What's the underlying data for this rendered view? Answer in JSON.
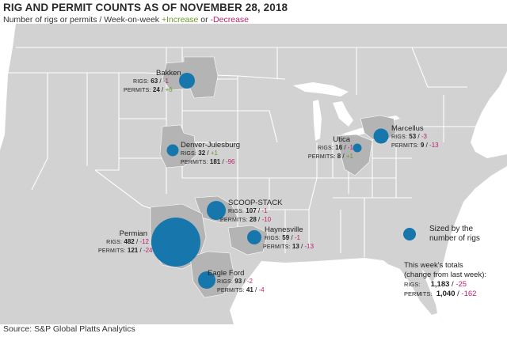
{
  "title": "RIG AND PERMIT COUNTS AS OF NOVEMBER 28, 2018",
  "subtitle": {
    "main": "Number of rigs or permits / Week-on-week",
    "increase": "+Increase",
    "or": "or",
    "decrease": "-Decrease"
  },
  "colors": {
    "bubble": "#1777ad",
    "increase": "#6b9a2c",
    "decrease": "#b8236b",
    "land": "#d2d2d2",
    "basin": "#b4b4b4",
    "water": "#ffffff"
  },
  "basins": [
    {
      "id": "bakken",
      "name": "Bakken",
      "rigs": "63",
      "rigs_change": "-1",
      "permits": "24",
      "permits_change": "+6"
    },
    {
      "id": "dj",
      "name": "Denver-Julesburg",
      "rigs": "32",
      "rigs_change": "+1",
      "permits": "181",
      "permits_change": "-96"
    },
    {
      "id": "utica",
      "name": "Utica",
      "rigs": "16",
      "rigs_change": "-1",
      "permits": "8",
      "permits_change": "+1"
    },
    {
      "id": "marcellus",
      "name": "Marcellus",
      "rigs": "53",
      "rigs_change": "-3",
      "permits": "9",
      "permits_change": "-13"
    },
    {
      "id": "scoop",
      "name": "SCOOP-STACK",
      "rigs": "107",
      "rigs_change": "-1",
      "permits": "28",
      "permits_change": "-10"
    },
    {
      "id": "haynesville",
      "name": "Haynesville",
      "rigs": "59",
      "rigs_change": "-1",
      "permits": "13",
      "permits_change": "-13"
    },
    {
      "id": "permian",
      "name": "Permian",
      "rigs": "482",
      "rigs_change": "-12",
      "permits": "121",
      "permits_change": "-24"
    },
    {
      "id": "eagleford",
      "name": "Eagle Ford",
      "rigs": "93",
      "rigs_change": "-2",
      "permits": "41",
      "permits_change": "-4"
    }
  ],
  "labels": {
    "rigs": "RIGS:",
    "permits": "PERMITS:"
  },
  "legend": {
    "line1": "Sized by the",
    "line2": "number of rigs"
  },
  "totals": {
    "line1": "This week's totals",
    "line2": "(change from last week):",
    "rigs_key": "RIGS:",
    "rigs": "1,183",
    "rigs_change": "-25",
    "permits_key": "PERMITS:",
    "permits": "1,040",
    "permits_change": "-162"
  },
  "source": "Source: S&P Global Platts Analytics"
}
